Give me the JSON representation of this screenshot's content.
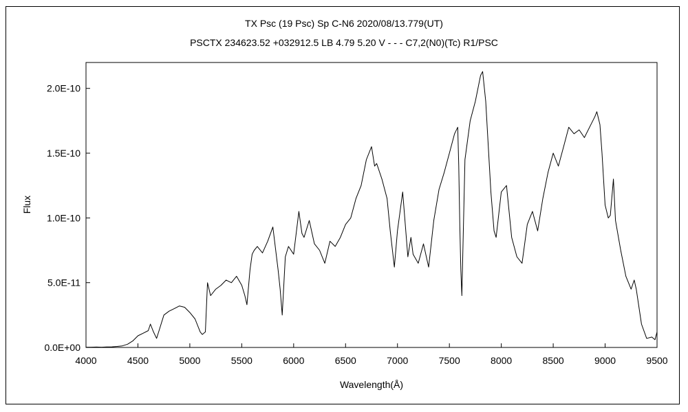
{
  "chart_data": {
    "type": "line",
    "title": "TX Psc (19 Psc)    Sp C-N6    2020/08/13.779(UT)",
    "subtitle": "PSCTX 234623.52 +032912.5 LB 4.79 5.20 V - - - C7,2(N0)(Tc) R1/PSC",
    "xlabel": "Wavelength(Å)",
    "ylabel": "Flux",
    "xlim": [
      4000,
      9500
    ],
    "ylim": [
      0,
      2.2e-10
    ],
    "x_ticks": [
      4000,
      4500,
      5000,
      5500,
      6000,
      6500,
      7000,
      7500,
      8000,
      8500,
      9000,
      9500
    ],
    "x_tick_labels": [
      "4000",
      "4500",
      "5000",
      "5500",
      "6000",
      "6500",
      "7000",
      "7500",
      "8000",
      "8500",
      "9000",
      "9500"
    ],
    "y_ticks": [
      0,
      5e-11,
      1e-10,
      1.5e-10,
      2e-10
    ],
    "y_tick_labels": [
      "0.0E+00",
      "5.0E-11",
      "1.0E-10",
      "1.5E-10",
      "2.0E-10"
    ],
    "grid": false,
    "series": [
      {
        "x": [
          4000,
          4050,
          4100,
          4150,
          4200,
          4250,
          4300,
          4350,
          4400,
          4450,
          4500,
          4550,
          4600,
          4620,
          4650,
          4680,
          4700,
          4750,
          4800,
          4850,
          4900,
          4950,
          5000,
          5050,
          5100,
          5120,
          5150,
          5170,
          5200,
          5250,
          5300,
          5350,
          5400,
          5450,
          5500,
          5530,
          5550,
          5580,
          5600,
          5620,
          5650,
          5700,
          5750,
          5800,
          5850,
          5870,
          5890,
          5920,
          5950,
          6000,
          6050,
          6080,
          6100,
          6150,
          6200,
          6250,
          6300,
          6350,
          6400,
          6450,
          6500,
          6550,
          6600,
          6650,
          6700,
          6750,
          6780,
          6800,
          6850,
          6900,
          6930,
          6970,
          7000,
          7050,
          7100,
          7130,
          7150,
          7200,
          7250,
          7300,
          7350,
          7400,
          7450,
          7500,
          7550,
          7580,
          7590,
          7600,
          7610,
          7620,
          7650,
          7700,
          7750,
          7800,
          7820,
          7850,
          7900,
          7930,
          7950,
          8000,
          8050,
          8100,
          8150,
          8200,
          8250,
          8300,
          8350,
          8400,
          8450,
          8500,
          8550,
          8600,
          8650,
          8700,
          8750,
          8800,
          8850,
          8900,
          8920,
          8950,
          8970,
          9000,
          9030,
          9050,
          9080,
          9100,
          9150,
          9200,
          9250,
          9280,
          9300,
          9350,
          9400,
          9450,
          9480,
          9500
        ],
        "y": [
          2e-13,
          2e-13,
          3e-13,
          2e-13,
          4e-13,
          5e-13,
          8e-13,
          1.2e-12,
          2.5e-12,
          5e-12,
          9e-12,
          1.1e-11,
          1.3e-11,
          1.8e-11,
          1.2e-11,
          7e-12,
          1.2e-11,
          2.5e-11,
          2.8e-11,
          3e-11,
          3.2e-11,
          3.1e-11,
          2.7e-11,
          2.2e-11,
          1.2e-11,
          1e-11,
          1.2e-11,
          5e-11,
          4e-11,
          4.5e-11,
          4.8e-11,
          5.2e-11,
          5e-11,
          5.5e-11,
          4.8e-11,
          4e-11,
          3.3e-11,
          6e-11,
          7.2e-11,
          7.5e-11,
          7.8e-11,
          7.3e-11,
          8.2e-11,
          9.3e-11,
          6e-11,
          4.5e-11,
          2.5e-11,
          7e-11,
          7.8e-11,
          7.2e-11,
          1.05e-10,
          8.8e-11,
          8.5e-11,
          9.8e-11,
          8e-11,
          7.5e-11,
          6.5e-11,
          8.2e-11,
          7.8e-11,
          8.5e-11,
          9.5e-11,
          1e-10,
          1.15e-10,
          1.25e-10,
          1.45e-10,
          1.55e-10,
          1.4e-10,
          1.42e-10,
          1.3e-10,
          1.15e-10,
          9e-11,
          6.2e-11,
          9e-11,
          1.2e-10,
          7e-11,
          8.5e-11,
          7.2e-11,
          6.5e-11,
          8e-11,
          6.2e-11,
          9.8e-11,
          1.22e-10,
          1.35e-10,
          1.5e-10,
          1.65e-10,
          1.7e-10,
          1.4e-10,
          9.5e-11,
          6e-11,
          4e-11,
          1.45e-10,
          1.75e-10,
          1.9e-10,
          2.1e-10,
          2.13e-10,
          1.9e-10,
          1.2e-10,
          9e-11,
          8.5e-11,
          1.2e-10,
          1.25e-10,
          8.5e-11,
          7e-11,
          6.5e-11,
          9.5e-11,
          1.05e-10,
          9e-11,
          1.15e-10,
          1.35e-10,
          1.5e-10,
          1.4e-10,
          1.55e-10,
          1.7e-10,
          1.65e-10,
          1.68e-10,
          1.62e-10,
          1.7e-10,
          1.78e-10,
          1.82e-10,
          1.72e-10,
          1.5e-10,
          1.1e-10,
          1e-10,
          1.02e-10,
          1.3e-10,
          9.8e-11,
          7.5e-11,
          5.5e-11,
          4.5e-11,
          5.2e-11,
          4.5e-11,
          1.8e-11,
          7e-12,
          8e-12,
          6e-12,
          1.2e-11
        ]
      }
    ]
  }
}
